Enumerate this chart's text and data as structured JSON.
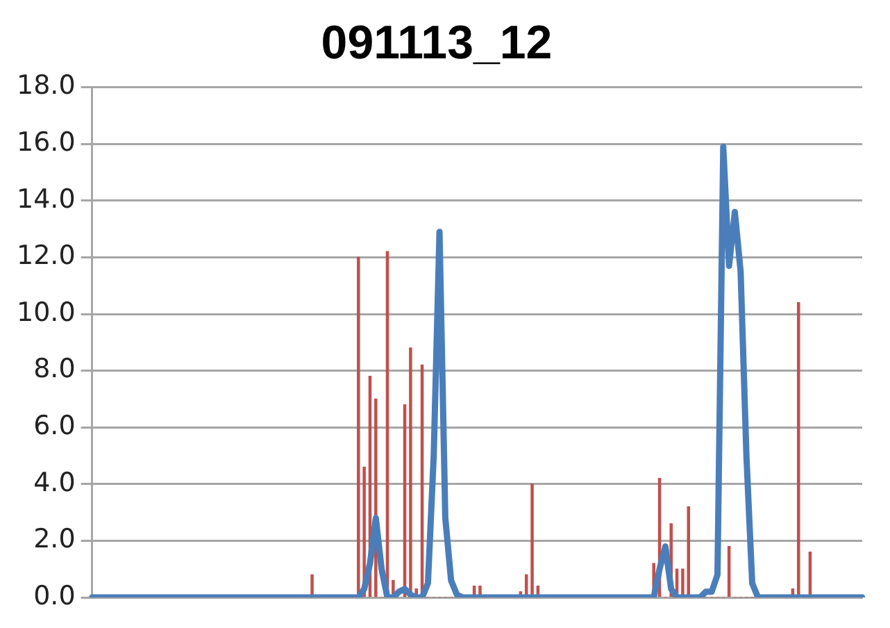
{
  "chart_data": {
    "type": "bar",
    "title": "091113_12",
    "categories": [
      null,
      null,
      null,
      null,
      null,
      null,
      null,
      null,
      null,
      null,
      null,
      null,
      null,
      null,
      null,
      null,
      null,
      null,
      null,
      null,
      null,
      null,
      null,
      null,
      null,
      null,
      null,
      null,
      null,
      null,
      null,
      null,
      null,
      null,
      null,
      null,
      null,
      null,
      null,
      null,
      null,
      null,
      null,
      null,
      null,
      null,
      null,
      null,
      null,
      null,
      null,
      null,
      null,
      null,
      null,
      null,
      null,
      null,
      null,
      null,
      null,
      null,
      null,
      null,
      null,
      null,
      null,
      null,
      null,
      null,
      null,
      null,
      null,
      null,
      null,
      null,
      null,
      null,
      null,
      null,
      null,
      null,
      null,
      null,
      null,
      null,
      null,
      null,
      null,
      null,
      null,
      null,
      null,
      null,
      null,
      null,
      null,
      null,
      null,
      null,
      null,
      null,
      null,
      null,
      null,
      null,
      null,
      null,
      null,
      null,
      null,
      null,
      null,
      null,
      null,
      null,
      null,
      null,
      null,
      null,
      null,
      null,
      null,
      null,
      null,
      null,
      null,
      null,
      null,
      null,
      null,
      null,
      null,
      null
    ],
    "series": [
      {
        "color": "#c0504d",
        "values": [
          0,
          0,
          0,
          0,
          0,
          0,
          0,
          0,
          0,
          0,
          0,
          0,
          0,
          0,
          0,
          0,
          0,
          0,
          0,
          0,
          0,
          0,
          0,
          0,
          0,
          0,
          0,
          0,
          0,
          0,
          0,
          0,
          0,
          0,
          0,
          0,
          0,
          0,
          0.8,
          0,
          0,
          0,
          0,
          0,
          0,
          0,
          12.0,
          4.6,
          7.8,
          7.0,
          0,
          12.2,
          0.6,
          null,
          6.8,
          8.8,
          0.3,
          8.2,
          0,
          0,
          0,
          0,
          0,
          0,
          0,
          0,
          0.4,
          0.4,
          0,
          0,
          0,
          0,
          0,
          0,
          0.2,
          0.8,
          4.0,
          0.4,
          0,
          0,
          0,
          0,
          0,
          0,
          0,
          0,
          0,
          0,
          0,
          0,
          0,
          0,
          0,
          0,
          0,
          0,
          0,
          1.2,
          4.2,
          0,
          2.6,
          1.0,
          1.0,
          3.2,
          0,
          0,
          0,
          0,
          0,
          0,
          1.8,
          0,
          0,
          0,
          0,
          0,
          0,
          0,
          0,
          0,
          0,
          0.3,
          10.4,
          0,
          1.6,
          0,
          0,
          0,
          0,
          0,
          0,
          0,
          0,
          0
        ]
      },
      {
        "type": "line",
        "color": "#4a7ebb",
        "values": [
          0,
          0,
          0,
          0,
          0,
          0,
          0,
          0,
          0,
          0,
          0,
          0,
          0,
          0,
          0,
          0,
          0,
          0,
          0,
          0,
          0,
          0,
          0,
          0,
          0,
          0,
          0,
          0,
          0,
          0,
          0,
          0,
          0,
          0,
          0,
          0,
          0,
          0,
          0,
          0,
          0,
          0,
          0,
          0,
          0,
          0,
          0,
          0.3,
          1.2,
          2.8,
          1.0,
          0,
          0,
          0.2,
          0.3,
          0.1,
          0,
          0,
          0.5,
          5.0,
          12.9,
          2.8,
          0.6,
          0.1,
          0,
          0,
          0,
          0,
          0,
          0,
          0,
          0,
          0,
          0,
          0,
          0,
          0,
          0,
          0,
          0,
          0,
          0,
          0,
          0,
          0,
          0,
          0,
          0,
          0,
          0,
          0,
          0,
          0,
          0,
          0,
          0,
          0,
          0,
          1.0,
          1.8,
          0.3,
          0,
          0,
          0,
          0,
          0,
          0.2,
          0.2,
          0.8,
          15.9,
          11.7,
          13.6,
          11.5,
          5.0,
          0.5,
          0,
          0,
          0,
          0,
          0,
          0,
          0,
          0,
          0,
          0,
          0,
          0,
          0,
          0,
          0,
          0,
          0,
          0,
          0
        ]
      }
    ],
    "ylim": [
      0,
      18
    ],
    "yticks": [
      {
        "value": 0,
        "label": "0.0"
      },
      {
        "value": 2,
        "label": "2.0"
      },
      {
        "value": 4,
        "label": "4.0"
      },
      {
        "value": 6,
        "label": "6.0"
      },
      {
        "value": 8,
        "label": "8.0"
      },
      {
        "value": 10,
        "label": "10.0"
      },
      {
        "value": 12,
        "label": "12.0"
      },
      {
        "value": 14,
        "label": "14.0"
      },
      {
        "value": 16,
        "label": "16.0"
      },
      {
        "value": 18,
        "label": "18.0"
      }
    ],
    "grid": "y",
    "legend": false,
    "tick_labels": "y",
    "marker": "none"
  }
}
